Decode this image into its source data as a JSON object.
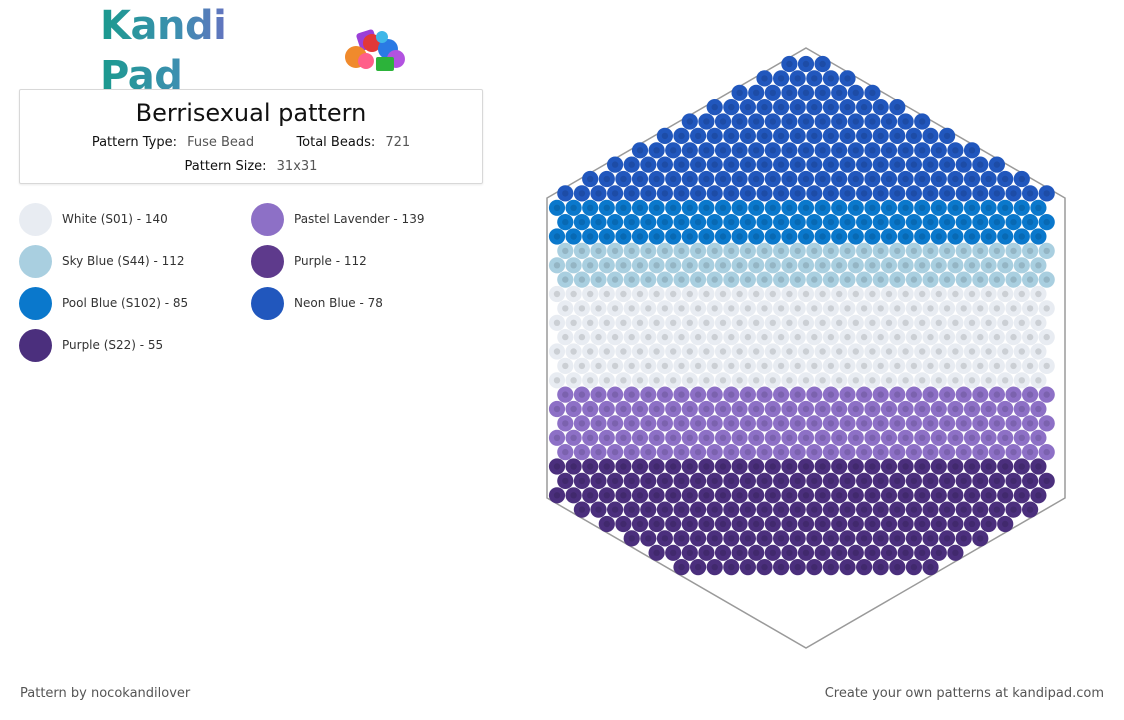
{
  "brand": {
    "name": "Kandi Pad"
  },
  "pattern": {
    "title": "Berrisexual pattern",
    "type_label": "Pattern Type:",
    "type_value": "Fuse Bead",
    "beads_label": "Total Beads:",
    "beads_value": "721",
    "size_label": "Pattern Size:",
    "size_value": "31x31"
  },
  "legend": [
    {
      "label": "White (S01) - 140",
      "color": "#e8ecf2"
    },
    {
      "label": "Sky Blue (S44) - 112",
      "color": "#a9cfe0"
    },
    {
      "label": "Pool Blue (S102) - 85",
      "color": "#0a78cc"
    },
    {
      "label": "Purple (S22) - 55",
      "color": "#4b2f7d"
    },
    {
      "label": "Pastel Lavender - 139",
      "color": "#8d70c6"
    },
    {
      "label": "Purple - 112",
      "color": "#5e3a8c"
    },
    {
      "label": "Neon Blue - 78",
      "color": "#2157bd"
    }
  ],
  "bead_colors": {
    "neon_blue": "#2157bd",
    "pool_blue": "#0a78cc",
    "sky_blue": "#a9cfe0",
    "white": "#e8ecf2",
    "lavender": "#8d70c6",
    "purple": "#5e3a8c",
    "dark_purple": "#4b2f7d"
  },
  "footer": {
    "left": "Pattern by nocokandilover",
    "right": "Create your own patterns at kandipad.com"
  }
}
